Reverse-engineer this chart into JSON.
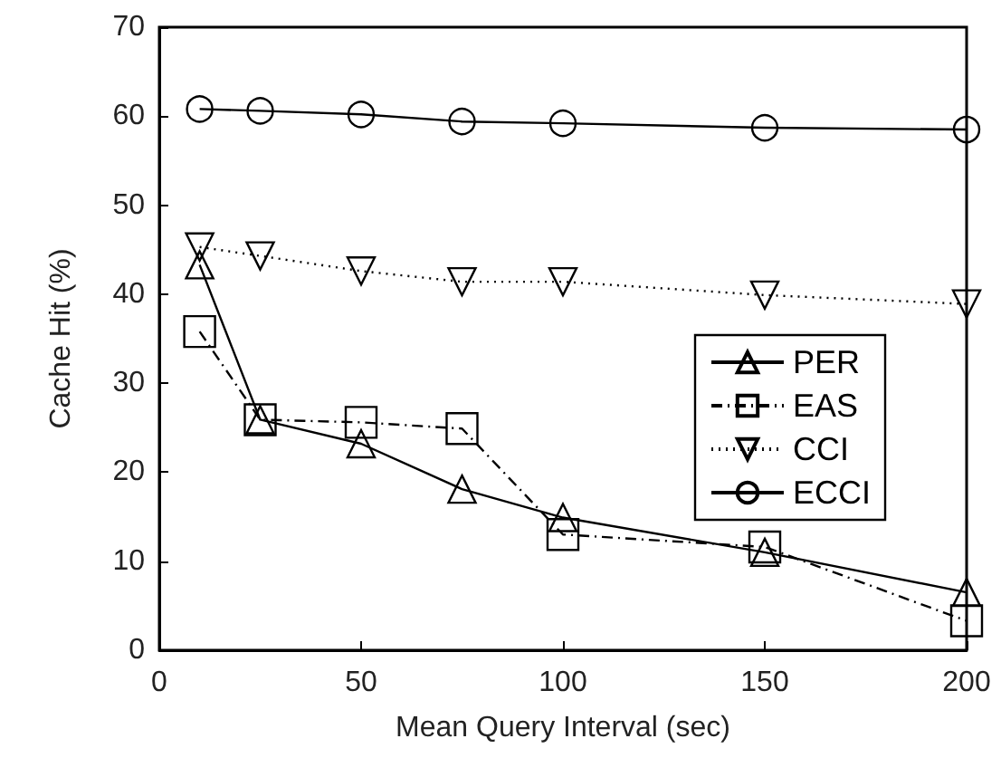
{
  "chart_data": {
    "type": "line",
    "xlabel": "Mean Query Interval (sec)",
    "ylabel": "Cache Hit (%)",
    "x": [
      10,
      25,
      50,
      75,
      100,
      150,
      200
    ],
    "xlim": [
      0,
      200
    ],
    "xticks": [
      0,
      50,
      100,
      150,
      200
    ],
    "ylim": [
      0,
      70
    ],
    "yticks": [
      0,
      10,
      20,
      30,
      40,
      50,
      60,
      70
    ],
    "grid": false,
    "legend": "right",
    "series": [
      {
        "name": "PER",
        "color": "#000000",
        "marker": "triangle",
        "line_style": "solid",
        "values": [
          43.3,
          25.9,
          23.2,
          18.1,
          14.9,
          11.0,
          6.5
        ]
      },
      {
        "name": "EAS",
        "color": "#000000",
        "marker": "square",
        "line_style": "dashed",
        "values": [
          35.8,
          25.9,
          25.6,
          24.9,
          13.0,
          11.6,
          3.3
        ]
      },
      {
        "name": "CCI",
        "color": "#000000",
        "marker": "triangle-down",
        "line_style": "dotted",
        "values": [
          45.3,
          44.3,
          42.6,
          41.4,
          41.4,
          39.9,
          38.9
        ]
      },
      {
        "name": "ECCI",
        "color": "#000000",
        "marker": "circle",
        "line_style": "solid",
        "values": [
          60.8,
          60.6,
          60.2,
          59.4,
          59.2,
          58.7,
          58.5
        ]
      }
    ]
  }
}
